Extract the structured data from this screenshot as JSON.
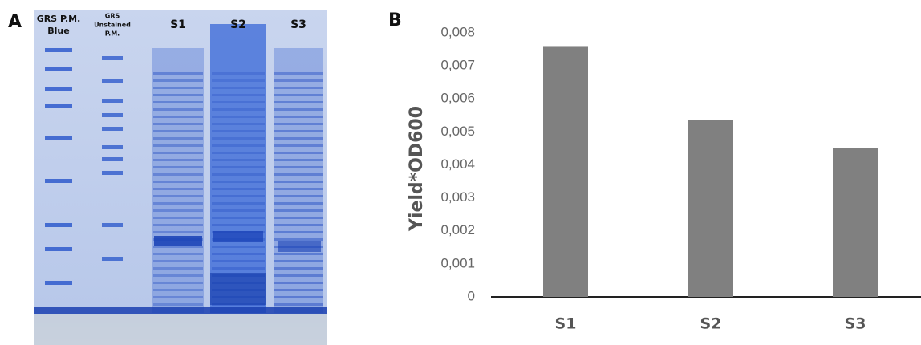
{
  "panel_a": {
    "label": "A",
    "lanes": [
      [
        "GRS P.M.",
        "Blue"
      ],
      [
        "GRS",
        "Unstained",
        "P.M."
      ],
      [
        "S1"
      ],
      [
        "S2"
      ],
      [
        "S3"
      ]
    ]
  },
  "panel_b": {
    "label": "B"
  },
  "chart_data": {
    "type": "bar",
    "y_label": "Yield*OD600",
    "categories": [
      "S1",
      "S2",
      "S3"
    ],
    "values": [
      0.0076,
      0.00535,
      0.0045
    ],
    "color": "#808080",
    "ylim": [
      0,
      0.008
    ],
    "yticks": [
      0,
      {
        "value": 0.001,
        "label": "0,001"
      },
      {
        "value": 0.002,
        "label": "0,002"
      },
      {
        "value": 0.003,
        "label": "0,003"
      },
      {
        "value": 0.004,
        "label": "0,004"
      },
      {
        "value": 0.005,
        "label": "0,005"
      },
      {
        "value": 0.006,
        "label": "0,006"
      },
      {
        "value": 0.007,
        "label": "0,007"
      },
      {
        "value": 0.008,
        "label": "0,008"
      }
    ],
    "grid": false
  }
}
